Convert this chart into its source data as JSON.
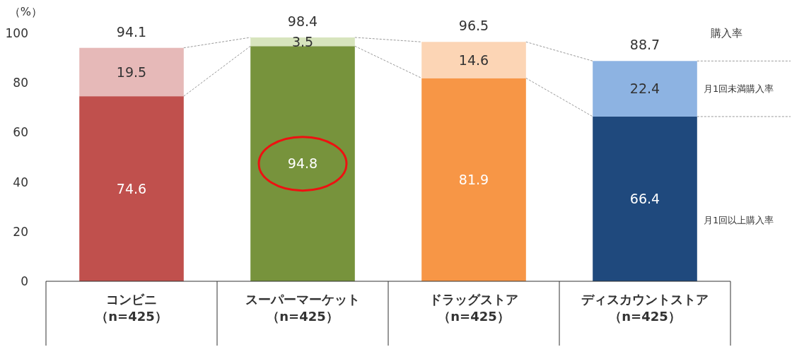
{
  "chart_data": {
    "type": "bar",
    "stacked": true,
    "ylabel": "（%）",
    "categories": [
      "コンビニ（n=425）",
      "スーパーマーケット（n=425）",
      "ドラッグストア（n=425）",
      "ディスカウントストア（n=425）"
    ],
    "series": [
      {
        "name": "月1回以上購入率",
        "colors": [
          "#c0504d",
          "#77933c",
          "#f79646",
          "#1f497d"
        ],
        "values": [
          74.6,
          94.8,
          81.9,
          66.4
        ]
      },
      {
        "name": "月1回未満購入率",
        "colors": [
          "#e6b9b8",
          "#d7e4bd",
          "#fcd5b5",
          "#8db3e2"
        ],
        "values": [
          19.5,
          3.5,
          14.6,
          22.4
        ]
      }
    ],
    "totals": [
      "94.1",
      "98.4",
      "96.5",
      "88.7"
    ],
    "annotations": [
      "購入率"
    ],
    "data_labels": true,
    "ylim": [
      0,
      100
    ],
    "yticks": [
      0,
      20,
      40,
      60,
      80,
      100
    ],
    "grid": false
  }
}
